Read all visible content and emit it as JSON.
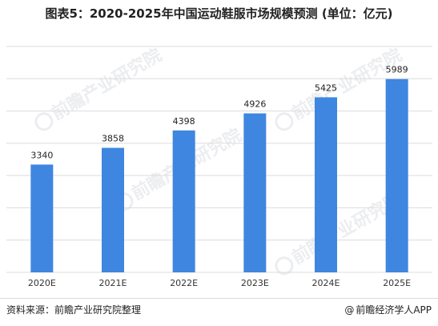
{
  "title": "图表5：2020-2025年中国运动鞋服市场规模预测 (单位：亿元)",
  "watermark": "前瞻产业研究院",
  "footer": {
    "source": "资料来源：前瞻产业研究院整理",
    "brand_at": "@",
    "brand": "前瞻经济学人APP"
  },
  "colors": {
    "bar": "#3f86e0",
    "grid": "#dcdcdc"
  },
  "chart_data": {
    "type": "bar",
    "categories": [
      "2020E",
      "2021E",
      "2022E",
      "2023E",
      "2024E",
      "2025E"
    ],
    "values": [
      3340,
      3858,
      4398,
      4926,
      5425,
      5989
    ],
    "data_labels": [
      "3340",
      "3858",
      "4398",
      "4926",
      "5425",
      "5989"
    ],
    "ylim": [
      0,
      7000
    ],
    "grid": true,
    "legend": "none"
  }
}
